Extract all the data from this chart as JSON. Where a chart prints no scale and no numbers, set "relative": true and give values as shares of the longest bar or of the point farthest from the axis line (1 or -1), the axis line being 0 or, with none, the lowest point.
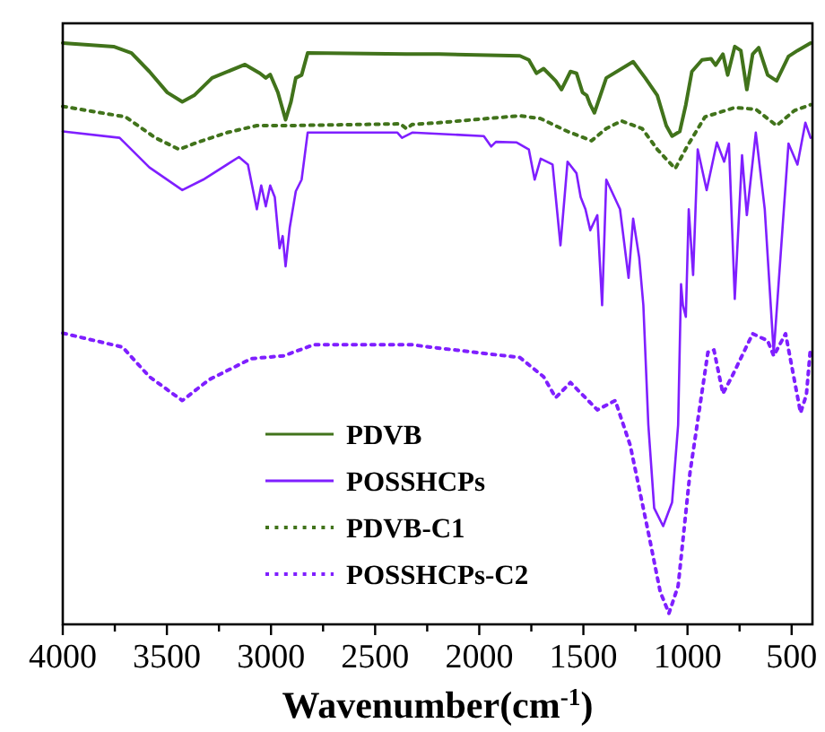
{
  "chart_data": {
    "type": "line",
    "relative": true,
    "xlabel": "Wavenumber(cm$^{-1}$)",
    "xlim": [
      4000,
      400
    ],
    "xticks": [
      4000,
      {
        "value": 3750,
        "label": null
      },
      3500,
      {
        "value": 3250,
        "label": null
      },
      3000,
      {
        "value": 2750,
        "label": null
      },
      2500,
      {
        "value": 2250,
        "label": null
      },
      2000,
      {
        "value": 1750,
        "label": null
      },
      1500,
      {
        "value": 1250,
        "label": null
      },
      1000,
      {
        "value": 750,
        "label": null
      },
      500
    ],
    "legend": "bottom left",
    "grid": false,
    "marker": "none",
    "series": [
      {
        "name": "PDVB",
        "color": "#41731b",
        "line_style": "solid",
        "x": [
          4000,
          3756,
          3670,
          3584,
          3498,
          3426,
          3369,
          3283,
          3125,
          3053,
          3025,
          3004,
          2967,
          2930,
          2904,
          2881,
          2853,
          2824,
          2350,
          2193,
          1805,
          1762,
          1725,
          1691,
          1633,
          1605,
          1562,
          1533,
          1504,
          1484,
          1467,
          1447,
          1390,
          1261,
          1203,
          1145,
          1102,
          1074,
          1037,
          1008,
          979,
          930,
          887,
          865,
          830,
          807,
          773,
          744,
          715,
          687,
          658,
          615,
          572,
          515,
          472,
          409
        ],
        "values": [
          1.0,
          0.994,
          0.983,
          0.951,
          0.915,
          0.899,
          0.91,
          0.94,
          0.963,
          0.948,
          0.94,
          0.946,
          0.915,
          0.868,
          0.899,
          0.94,
          0.945,
          0.983,
          0.981,
          0.981,
          0.978,
          0.971,
          0.948,
          0.956,
          0.935,
          0.92,
          0.951,
          0.948,
          0.915,
          0.91,
          0.894,
          0.88,
          0.94,
          0.968,
          0.94,
          0.91,
          0.858,
          0.84,
          0.848,
          0.894,
          0.951,
          0.971,
          0.973,
          0.962,
          0.981,
          0.945,
          0.994,
          0.987,
          0.92,
          0.981,
          0.992,
          0.945,
          0.935,
          0.977,
          0.987,
          1.0
        ]
      },
      {
        "name": "POSSHCPs",
        "color": "#7f1fff",
        "line_style": "solid",
        "x": [
          4000,
          3727,
          3584,
          3426,
          3326,
          3154,
          3111,
          3068,
          3047,
          3025,
          3004,
          2982,
          2959,
          2944,
          2930,
          2910,
          2881,
          2853,
          2824,
          2393,
          2371,
          2322,
          1978,
          1943,
          1920,
          1820,
          1762,
          1734,
          1705,
          1648,
          1610,
          1576,
          1533,
          1513,
          1490,
          1467,
          1433,
          1410,
          1390,
          1324,
          1283,
          1261,
          1232,
          1212,
          1188,
          1160,
          1117,
          1074,
          1045,
          1031,
          1022,
          1008,
          994,
          973,
          951,
          908,
          859,
          824,
          801,
          773,
          738,
          715,
          672,
          629,
          586,
          515,
          472,
          434,
          409
        ],
        "values": [
          0.848,
          0.837,
          0.786,
          0.747,
          0.765,
          0.804,
          0.791,
          0.714,
          0.755,
          0.719,
          0.755,
          0.735,
          0.647,
          0.668,
          0.616,
          0.683,
          0.745,
          0.765,
          0.846,
          0.846,
          0.837,
          0.846,
          0.84,
          0.822,
          0.83,
          0.829,
          0.817,
          0.765,
          0.801,
          0.791,
          0.652,
          0.796,
          0.776,
          0.735,
          0.714,
          0.678,
          0.704,
          0.549,
          0.765,
          0.714,
          0.596,
          0.698,
          0.631,
          0.549,
          0.343,
          0.2,
          0.169,
          0.21,
          0.343,
          0.585,
          0.549,
          0.529,
          0.714,
          0.601,
          0.817,
          0.747,
          0.829,
          0.796,
          0.827,
          0.56,
          0.807,
          0.704,
          0.846,
          0.714,
          0.467,
          0.827,
          0.791,
          0.863,
          0.837
        ]
      },
      {
        "name": "PDVB-C1",
        "color": "#41731b",
        "line_style": "dotted",
        "x": [
          4000,
          3699,
          3555,
          3441,
          3355,
          3211,
          3068,
          2924,
          2379,
          2350,
          2322,
          2193,
          1805,
          1705,
          1576,
          1461,
          1390,
          1317,
          1218,
          1145,
          1059,
          1002,
          916,
          773,
          672,
          572,
          486,
          409
        ],
        "values": [
          0.891,
          0.873,
          0.837,
          0.817,
          0.829,
          0.846,
          0.858,
          0.858,
          0.861,
          0.853,
          0.86,
          0.863,
          0.875,
          0.87,
          0.848,
          0.832,
          0.853,
          0.866,
          0.853,
          0.817,
          0.784,
          0.822,
          0.873,
          0.889,
          0.886,
          0.858,
          0.884,
          0.894
        ]
      },
      {
        "name": "POSSHCPs-C2",
        "color": "#7f1fff",
        "line_style": "dotted",
        "x": [
          4000,
          3713,
          3584,
          3426,
          3297,
          3096,
          2939,
          2795,
          2322,
          2236,
          1805,
          1691,
          1633,
          1562,
          1433,
          1347,
          1275,
          1188,
          1131,
          1089,
          1045,
          988,
          902,
          873,
          830,
          787,
          687,
          615,
          586,
          529,
          457,
          429,
          409
        ],
        "values": [
          0.501,
          0.477,
          0.426,
          0.385,
          0.421,
          0.457,
          0.462,
          0.481,
          0.481,
          0.477,
          0.459,
          0.426,
          0.39,
          0.416,
          0.369,
          0.385,
          0.308,
          0.158,
          0.056,
          0.019,
          0.066,
          0.261,
          0.468,
          0.472,
          0.397,
          0.426,
          0.5,
          0.488,
          0.462,
          0.5,
          0.364,
          0.395,
          0.477
        ]
      }
    ]
  }
}
